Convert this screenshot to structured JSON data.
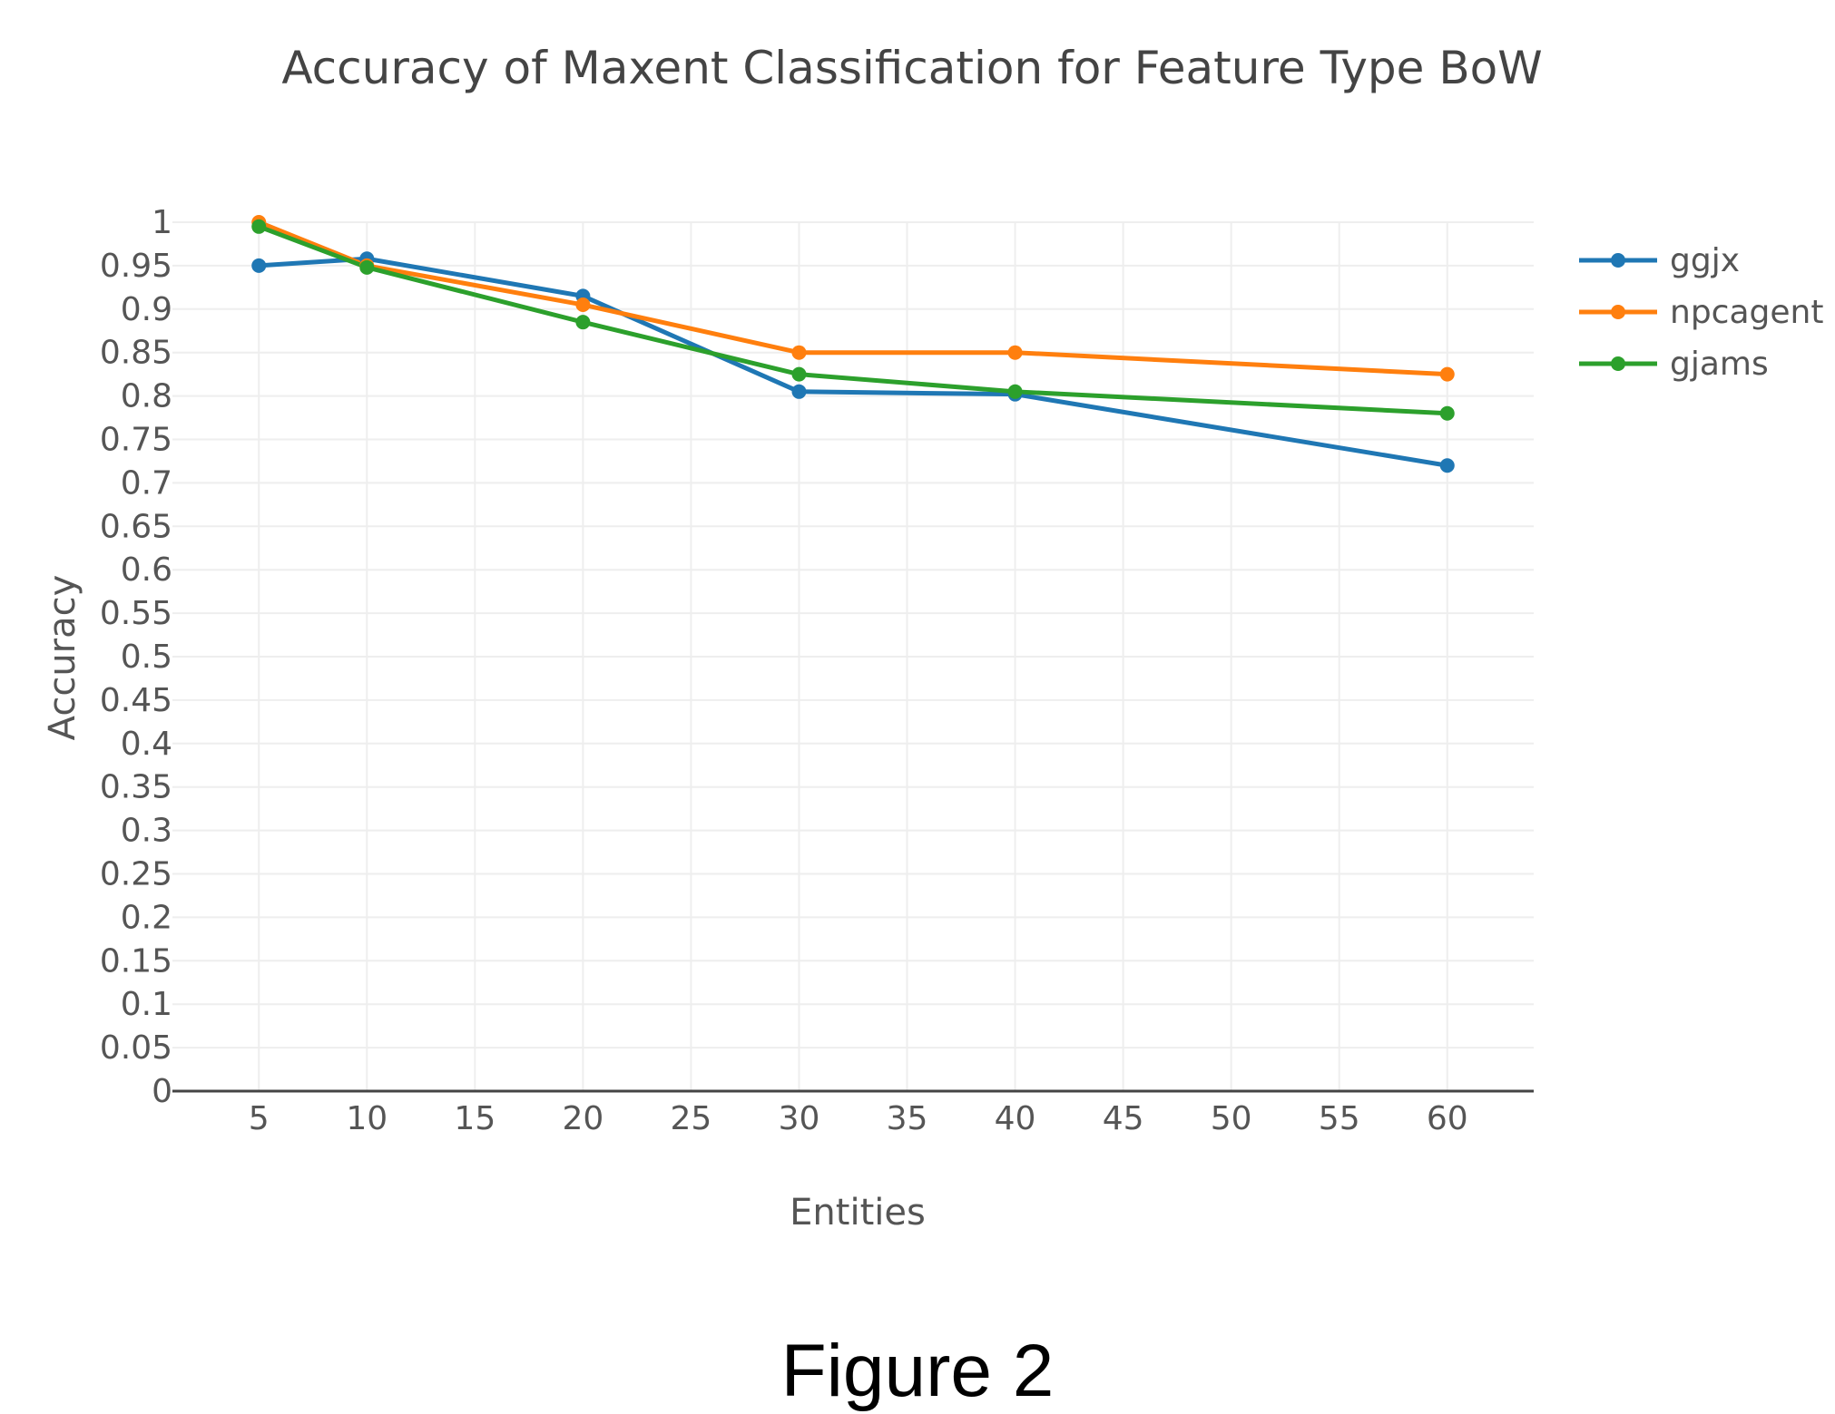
{
  "caption": "Figure 2",
  "colors": {
    "ggjx": "#1f77b4",
    "npcagent": "#ff7f0e",
    "gjams": "#2ca02c",
    "grid": "#eeeeee",
    "axis": "#444444"
  },
  "chart_data": {
    "type": "line",
    "title": "Accuracy of Maxent Classification for Feature Type BoW",
    "xlabel": "Entities",
    "ylabel": "Accuracy",
    "xlim": [
      1,
      64
    ],
    "ylim": [
      0,
      1
    ],
    "xticks": [
      5,
      10,
      15,
      20,
      25,
      30,
      35,
      40,
      45,
      50,
      55,
      60
    ],
    "yticks": [
      0,
      0.05,
      0.1,
      0.15,
      0.2,
      0.25,
      0.3,
      0.35,
      0.4,
      0.45,
      0.5,
      0.55,
      0.6,
      0.65,
      0.7,
      0.75,
      0.8,
      0.85,
      0.9,
      0.95,
      1
    ],
    "grid": true,
    "legend": "right",
    "x": [
      5,
      10,
      20,
      30,
      40,
      60
    ],
    "series": [
      {
        "name": "ggjx",
        "values": [
          0.95,
          0.958,
          0.915,
          0.805,
          0.802,
          0.72
        ]
      },
      {
        "name": "npcagent",
        "values": [
          1.0,
          0.95,
          0.905,
          0.85,
          0.85,
          0.825
        ]
      },
      {
        "name": "gjams",
        "values": [
          0.995,
          0.948,
          0.885,
          0.825,
          0.805,
          0.78
        ]
      }
    ]
  }
}
